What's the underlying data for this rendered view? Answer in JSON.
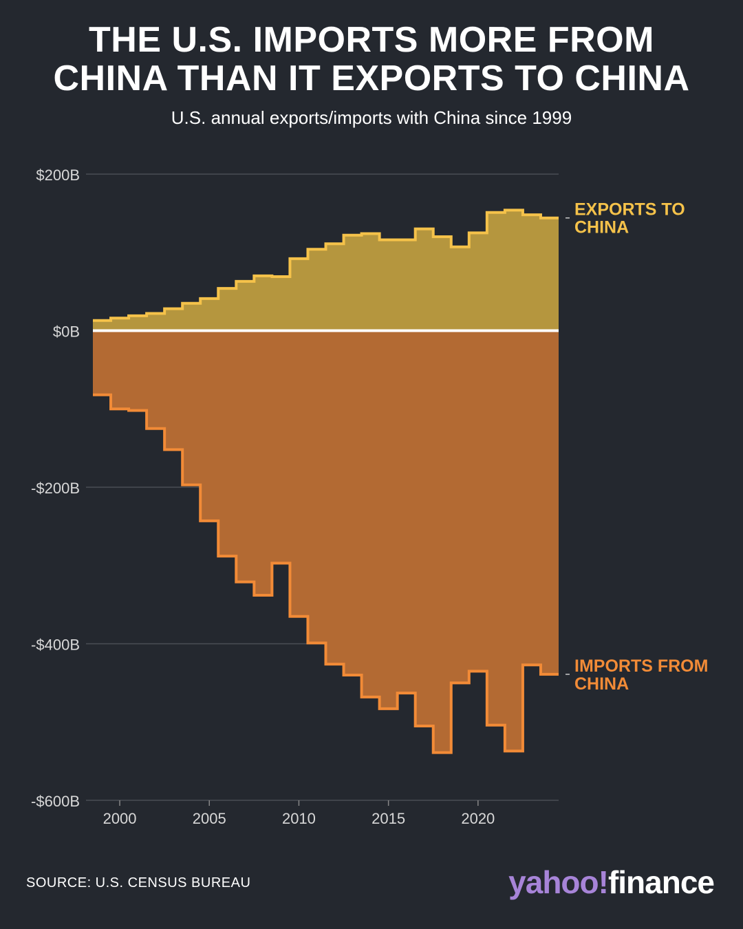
{
  "title_line1": "THE U.S. IMPORTS MORE FROM",
  "title_line2": "CHINA THAN IT EXPORTS TO CHINA",
  "subtitle": "U.S. annual exports/imports with China since 1999",
  "source": "SOURCE: U.S. CENSUS BUREAU",
  "logo": {
    "part1": "yahoo!",
    "part2": "finance"
  },
  "colors": {
    "background": "#24282f",
    "exports_fill": "#b5963e",
    "exports_line": "#f5c24a",
    "imports_fill": "#b36a33",
    "imports_line": "#f28b37",
    "zero_line": "#ffffff",
    "grid": "#4a4e55"
  },
  "chart_data": {
    "type": "area",
    "step": true,
    "x": [
      1999,
      2000,
      2001,
      2002,
      2003,
      2004,
      2005,
      2006,
      2007,
      2008,
      2009,
      2010,
      2011,
      2012,
      2013,
      2014,
      2015,
      2016,
      2017,
      2018,
      2019,
      2020,
      2021,
      2022,
      2023,
      2024
    ],
    "series": [
      {
        "name": "EXPORTS TO CHINA",
        "values": [
          13,
          16,
          19,
          22,
          28,
          35,
          41,
          54,
          63,
          70,
          69,
          92,
          104,
          111,
          122,
          124,
          116,
          116,
          130,
          120,
          107,
          125,
          151,
          154,
          148,
          144
        ]
      },
      {
        "name": "IMPORTS FROM CHINA",
        "values": [
          -82,
          -100,
          -102,
          -125,
          -152,
          -197,
          -243,
          -288,
          -321,
          -338,
          -297,
          -365,
          -399,
          -426,
          -440,
          -468,
          -483,
          -463,
          -505,
          -539,
          -450,
          -435,
          -504,
          -537,
          -427,
          -439
        ]
      }
    ],
    "ylim": [
      -600,
      200
    ],
    "yticks": [
      200,
      0,
      -200,
      -400,
      -600
    ],
    "ytick_labels": [
      "$200B",
      "$0B",
      "-$200B",
      "-$400B",
      "-$600B"
    ],
    "xticks": [
      2000,
      2005,
      2010,
      2015,
      2020
    ],
    "xtick_labels": [
      "2000",
      "2005",
      "2010",
      "2015",
      "2020"
    ],
    "labels": {
      "exports": [
        "EXPORTS TO",
        "CHINA"
      ],
      "imports": [
        "IMPORTS FROM",
        "CHINA"
      ]
    },
    "grid": true,
    "legend": "direct labels at right"
  }
}
